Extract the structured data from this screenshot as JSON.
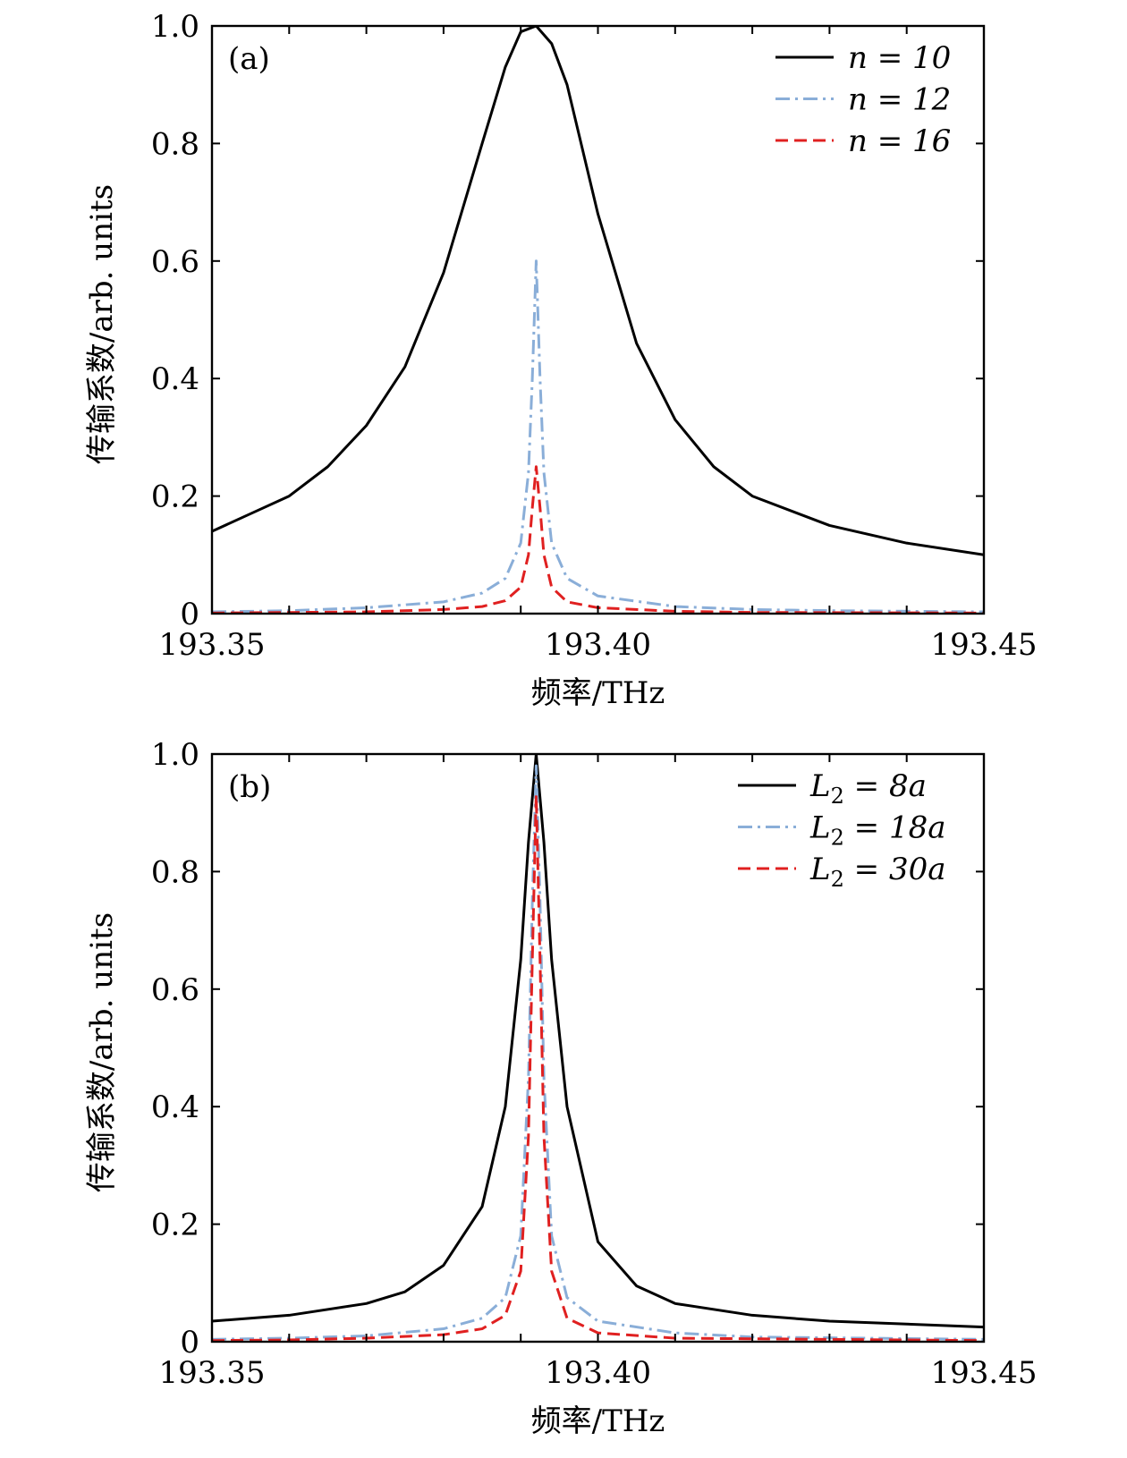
{
  "colors": {
    "black_series": "#000000",
    "blue_series": "#8aaed8",
    "red_series": "#e02020",
    "axes": "#000000",
    "background": "#ffffff"
  },
  "chart_data": [
    {
      "type": "line",
      "panel_label": "(a)",
      "xlabel": "频率/THz",
      "ylabel": "传输系数/arb. units",
      "xlim": [
        193.35,
        193.45
      ],
      "ylim": [
        0,
        1.0
      ],
      "x_ticks": [
        193.35,
        193.4,
        193.45
      ],
      "x_tick_labels": [
        "193.35",
        "193.40",
        "193.45"
      ],
      "y_ticks": [
        0,
        0.2,
        0.4,
        0.6,
        0.8,
        1.0
      ],
      "y_tick_labels": [
        "0",
        "0.2",
        "0.4",
        "0.6",
        "0.8",
        "1.0"
      ],
      "grid": false,
      "legend_position": "top-right",
      "series": [
        {
          "name": "n = 10",
          "color": "#000000",
          "style": "solid",
          "x": [
            193.35,
            193.355,
            193.36,
            193.365,
            193.37,
            193.375,
            193.38,
            193.385,
            193.388,
            193.39,
            193.392,
            193.394,
            193.396,
            193.4,
            193.405,
            193.41,
            193.415,
            193.42,
            193.43,
            193.44,
            193.45
          ],
          "y": [
            0.14,
            0.17,
            0.2,
            0.25,
            0.32,
            0.42,
            0.58,
            0.8,
            0.93,
            0.99,
            1.0,
            0.97,
            0.9,
            0.68,
            0.46,
            0.33,
            0.25,
            0.2,
            0.15,
            0.12,
            0.1
          ]
        },
        {
          "name": "n = 12",
          "color": "#8aaed8",
          "style": "dashdot",
          "x": [
            193.35,
            193.36,
            193.37,
            193.38,
            193.385,
            193.388,
            193.39,
            193.391,
            193.3915,
            193.392,
            193.3925,
            193.393,
            193.394,
            193.396,
            193.4,
            193.41,
            193.42,
            193.43,
            193.45
          ],
          "y": [
            0.003,
            0.005,
            0.01,
            0.02,
            0.035,
            0.06,
            0.12,
            0.24,
            0.4,
            0.6,
            0.4,
            0.24,
            0.12,
            0.06,
            0.03,
            0.012,
            0.007,
            0.005,
            0.003
          ]
        },
        {
          "name": "n = 16",
          "color": "#e02020",
          "style": "dashed",
          "x": [
            193.35,
            193.36,
            193.37,
            193.38,
            193.385,
            193.388,
            193.39,
            193.391,
            193.3915,
            193.392,
            193.3925,
            193.393,
            193.394,
            193.396,
            193.4,
            193.41,
            193.42,
            193.45
          ],
          "y": [
            0.001,
            0.002,
            0.003,
            0.007,
            0.012,
            0.022,
            0.045,
            0.1,
            0.18,
            0.25,
            0.18,
            0.1,
            0.045,
            0.02,
            0.01,
            0.004,
            0.002,
            0.001
          ]
        }
      ]
    },
    {
      "type": "line",
      "panel_label": "(b)",
      "xlabel": "频率/THz",
      "ylabel": "传输系数/arb. units",
      "xlim": [
        193.35,
        193.45
      ],
      "ylim": [
        0,
        1.0
      ],
      "x_ticks": [
        193.35,
        193.4,
        193.45
      ],
      "x_tick_labels": [
        "193.35",
        "193.40",
        "193.45"
      ],
      "y_ticks": [
        0,
        0.2,
        0.4,
        0.6,
        0.8,
        1.0
      ],
      "y_tick_labels": [
        "0",
        "0.2",
        "0.4",
        "0.6",
        "0.8",
        "1.0"
      ],
      "grid": false,
      "legend_position": "top-right",
      "series": [
        {
          "name": "L2 = 8a",
          "legend_main": "L",
          "legend_sub": "2",
          "legend_rest": " = 8a",
          "color": "#000000",
          "style": "solid",
          "x": [
            193.35,
            193.36,
            193.37,
            193.375,
            193.38,
            193.385,
            193.388,
            193.39,
            193.391,
            193.392,
            193.393,
            193.394,
            193.396,
            193.4,
            193.405,
            193.41,
            193.42,
            193.43,
            193.45
          ],
          "y": [
            0.035,
            0.045,
            0.065,
            0.085,
            0.13,
            0.23,
            0.4,
            0.65,
            0.85,
            1.0,
            0.85,
            0.65,
            0.4,
            0.17,
            0.095,
            0.065,
            0.045,
            0.035,
            0.025
          ]
        },
        {
          "name": "L2 = 18a",
          "legend_main": "L",
          "legend_sub": "2",
          "legend_rest": " = 18a",
          "color": "#8aaed8",
          "style": "dashdot",
          "x": [
            193.35,
            193.36,
            193.37,
            193.38,
            193.385,
            193.388,
            193.39,
            193.391,
            193.3915,
            193.392,
            193.3925,
            193.393,
            193.394,
            193.396,
            193.4,
            193.41,
            193.42,
            193.45
          ],
          "y": [
            0.004,
            0.006,
            0.01,
            0.022,
            0.04,
            0.075,
            0.18,
            0.45,
            0.75,
            0.98,
            0.75,
            0.45,
            0.18,
            0.075,
            0.035,
            0.015,
            0.008,
            0.004
          ]
        },
        {
          "name": "L2 = 30a",
          "legend_main": "L",
          "legend_sub": "2",
          "legend_rest": " = 30a",
          "color": "#e02020",
          "style": "dashed",
          "x": [
            193.35,
            193.36,
            193.37,
            193.38,
            193.385,
            193.388,
            193.39,
            193.391,
            193.3915,
            193.392,
            193.3925,
            193.393,
            193.394,
            193.396,
            193.4,
            193.41,
            193.45
          ],
          "y": [
            0.002,
            0.003,
            0.006,
            0.012,
            0.022,
            0.045,
            0.12,
            0.35,
            0.65,
            0.93,
            0.65,
            0.35,
            0.12,
            0.04,
            0.015,
            0.006,
            0.002
          ]
        }
      ]
    }
  ]
}
